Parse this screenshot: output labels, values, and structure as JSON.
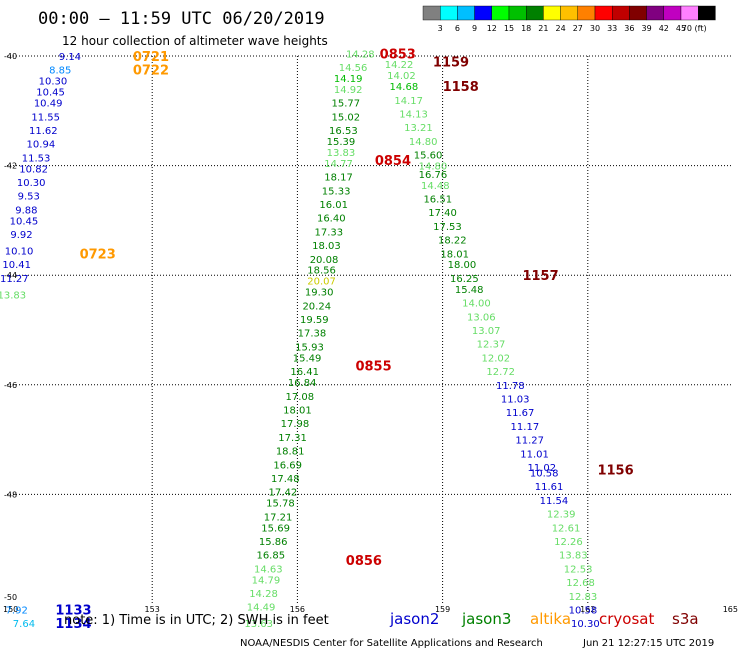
{
  "title": "00:00 – 11:59 UTC 06/20/2019",
  "subtitle": "12 hour collection of altimeter wave heights",
  "legend_scale": {
    "colors": [
      "#808080",
      "#00ffff",
      "#00bfff",
      "#0000ff",
      "#00ff00",
      "#00c000",
      "#008000",
      "#ffff00",
      "#ffc000",
      "#ff8000",
      "#ff0000",
      "#c00000",
      "#800000",
      "#800080",
      "#c000c0",
      "#ff80ff",
      "#000000"
    ],
    "labels": [
      "3",
      "6",
      "9",
      "12",
      "15",
      "18",
      "21",
      "24",
      "27",
      "30",
      "33",
      "36",
      "39",
      "42",
      "45",
      "70 (ft)"
    ]
  },
  "footer": {
    "note": "note: 1) Time is in UTC; 2) SWH is in feet",
    "credit": "NOAA/NESDIS Center for Satellite Applications and Research",
    "timestamp": "Jun 21 12:27:15 UTC 2019"
  },
  "satellites": [
    {
      "name": "jason2",
      "color": "#0000cc"
    },
    {
      "name": "jason3",
      "color": "#008000"
    },
    {
      "name": "altika",
      "color": "#ff9900"
    },
    {
      "name": "cryosat",
      "color": "#cc0000"
    },
    {
      "name": "s3a",
      "color": "#800000"
    }
  ],
  "chart_data": {
    "type": "scatter",
    "xlim": [
      150,
      165
    ],
    "ylim": [
      -50,
      -40
    ],
    "x_ticks": [
      "150",
      "153",
      "156",
      "159",
      "162",
      "165"
    ],
    "y_ticks": [
      "-40",
      "-42",
      "-44",
      "-46",
      "-48",
      "-50"
    ],
    "grid": true,
    "tracks": [
      {
        "satellite": "altika",
        "color": "#ff9900",
        "time_labels": [
          {
            "text": "0721",
            "lon": 152.6,
            "lat": -40.0
          },
          {
            "text": "0722",
            "lon": 152.6,
            "lat": -40.25
          },
          {
            "text": "0723",
            "lon": 151.5,
            "lat": -43.6
          }
        ],
        "points": [
          {
            "lon": 151.3,
            "lat": -40.0,
            "value": "9.14",
            "color": "#0000cc"
          },
          {
            "lon": 151.1,
            "lat": -40.25,
            "value": "8.85",
            "color": "#0088ff"
          },
          {
            "lon": 150.95,
            "lat": -40.45,
            "value": "10.30",
            "color": "#0000cc"
          },
          {
            "lon": 150.9,
            "lat": -40.65,
            "value": "10.45",
            "color": "#0000cc"
          },
          {
            "lon": 150.85,
            "lat": -40.85,
            "value": "10.49",
            "color": "#0000cc"
          },
          {
            "lon": 150.8,
            "lat": -41.1,
            "value": "11.55",
            "color": "#0000cc"
          },
          {
            "lon": 150.75,
            "lat": -41.35,
            "value": "11.62",
            "color": "#0000cc"
          },
          {
            "lon": 150.7,
            "lat": -41.6,
            "value": "10.94",
            "color": "#0000cc"
          },
          {
            "lon": 150.6,
            "lat": -41.85,
            "value": "11.53",
            "color": "#0000cc"
          },
          {
            "lon": 150.55,
            "lat": -42.05,
            "value": "10.82",
            "color": "#0000cc"
          },
          {
            "lon": 150.5,
            "lat": -42.3,
            "value": "10.30",
            "color": "#0000cc"
          },
          {
            "lon": 150.45,
            "lat": -42.55,
            "value": "9.53",
            "color": "#0000cc"
          },
          {
            "lon": 150.4,
            "lat": -42.8,
            "value": "9.88",
            "color": "#0000cc"
          },
          {
            "lon": 150.35,
            "lat": -43.0,
            "value": "10.45",
            "color": "#0000cc"
          },
          {
            "lon": 150.3,
            "lat": -43.25,
            "value": "9.92",
            "color": "#0000cc"
          },
          {
            "lon": 150.25,
            "lat": -43.55,
            "value": "10.10",
            "color": "#0000cc"
          },
          {
            "lon": 150.2,
            "lat": -43.8,
            "value": "10.41",
            "color": "#0000cc"
          },
          {
            "lon": 150.15,
            "lat": -44.05,
            "value": "11.27",
            "color": "#0000cc"
          },
          {
            "lon": 150.1,
            "lat": -44.35,
            "value": "13.83",
            "color": "#66dd66"
          }
        ]
      },
      {
        "satellite": "cryosat",
        "color": "#cc0000",
        "time_labels": [
          {
            "text": "0853",
            "lon": 157.7,
            "lat": -39.95
          },
          {
            "text": "0854",
            "lon": 157.6,
            "lat": -41.9
          },
          {
            "text": "0855",
            "lon": 157.2,
            "lat": -45.65
          },
          {
            "text": "0856",
            "lon": 157.0,
            "lat": -49.2
          }
        ],
        "points": [
          {
            "lon": 157.3,
            "lat": -39.95,
            "value": "14.28",
            "color": "#66dd66"
          },
          {
            "lon": 157.15,
            "lat": -40.2,
            "value": "14.56",
            "color": "#66dd66"
          },
          {
            "lon": 157.05,
            "lat": -40.4,
            "value": "14.19",
            "color": "#00bb00"
          },
          {
            "lon": 157.05,
            "lat": -40.6,
            "value": "14.92",
            "color": "#66dd66"
          },
          {
            "lon": 157.0,
            "lat": -40.85,
            "value": "15.77",
            "color": "#008000"
          },
          {
            "lon": 157.0,
            "lat": -41.1,
            "value": "15.02",
            "color": "#008000"
          },
          {
            "lon": 156.95,
            "lat": -41.35,
            "value": "16.53",
            "color": "#008000"
          },
          {
            "lon": 156.9,
            "lat": -41.55,
            "value": "15.39",
            "color": "#008000"
          },
          {
            "lon": 156.9,
            "lat": -41.75,
            "value": "13.83",
            "color": "#66dd66"
          },
          {
            "lon": 156.85,
            "lat": -41.95,
            "value": "14.77",
            "color": "#66dd66"
          },
          {
            "lon": 156.85,
            "lat": -42.2,
            "value": "18.17",
            "color": "#008000"
          },
          {
            "lon": 156.8,
            "lat": -42.45,
            "value": "15.33",
            "color": "#008000"
          },
          {
            "lon": 156.75,
            "lat": -42.7,
            "value": "16.01",
            "color": "#008000"
          },
          {
            "lon": 156.7,
            "lat": -42.95,
            "value": "16.40",
            "color": "#008000"
          },
          {
            "lon": 156.65,
            "lat": -43.2,
            "value": "17.33",
            "color": "#008000"
          },
          {
            "lon": 156.6,
            "lat": -43.45,
            "value": "18.03",
            "color": "#008000"
          },
          {
            "lon": 156.55,
            "lat": -43.7,
            "value": "20.08",
            "color": "#008000"
          },
          {
            "lon": 156.5,
            "lat": -43.9,
            "value": "18.56",
            "color": "#008000"
          },
          {
            "lon": 156.5,
            "lat": -44.1,
            "value": "20.07",
            "color": "#cccc00"
          },
          {
            "lon": 156.45,
            "lat": -44.3,
            "value": "19.30",
            "color": "#008000"
          },
          {
            "lon": 156.4,
            "lat": -44.55,
            "value": "20.24",
            "color": "#008000"
          },
          {
            "lon": 156.35,
            "lat": -44.8,
            "value": "19.59",
            "color": "#008000"
          },
          {
            "lon": 156.3,
            "lat": -45.05,
            "value": "17.38",
            "color": "#008000"
          },
          {
            "lon": 156.25,
            "lat": -45.3,
            "value": "15.93",
            "color": "#008000"
          },
          {
            "lon": 156.2,
            "lat": -45.5,
            "value": "15.49",
            "color": "#008000"
          },
          {
            "lon": 156.15,
            "lat": -45.75,
            "value": "16.41",
            "color": "#008000"
          },
          {
            "lon": 156.1,
            "lat": -45.95,
            "value": "16.84",
            "color": "#008000"
          },
          {
            "lon": 156.05,
            "lat": -46.2,
            "value": "17.08",
            "color": "#008000"
          },
          {
            "lon": 156.0,
            "lat": -46.45,
            "value": "18.01",
            "color": "#008000"
          },
          {
            "lon": 155.95,
            "lat": -46.7,
            "value": "17.98",
            "color": "#008000"
          },
          {
            "lon": 155.9,
            "lat": -46.95,
            "value": "17.31",
            "color": "#008000"
          },
          {
            "lon": 155.85,
            "lat": -47.2,
            "value": "18.81",
            "color": "#008000"
          },
          {
            "lon": 155.8,
            "lat": -47.45,
            "value": "16.69",
            "color": "#008000"
          },
          {
            "lon": 155.75,
            "lat": -47.7,
            "value": "17.48",
            "color": "#008000"
          },
          {
            "lon": 155.7,
            "lat": -47.95,
            "value": "17.42",
            "color": "#008000"
          },
          {
            "lon": 155.65,
            "lat": -48.15,
            "value": "15.78",
            "color": "#008000"
          },
          {
            "lon": 155.6,
            "lat": -48.4,
            "value": "17.21",
            "color": "#008000"
          },
          {
            "lon": 155.55,
            "lat": -48.6,
            "value": "15.69",
            "color": "#008000"
          },
          {
            "lon": 155.5,
            "lat": -48.85,
            "value": "15.86",
            "color": "#008000"
          },
          {
            "lon": 155.45,
            "lat": -49.1,
            "value": "16.85",
            "color": "#008000"
          },
          {
            "lon": 155.4,
            "lat": -49.35,
            "value": "14.63",
            "color": "#66dd66"
          },
          {
            "lon": 155.35,
            "lat": -49.55,
            "value": "14.79",
            "color": "#66dd66"
          },
          {
            "lon": 155.3,
            "lat": -49.8,
            "value": "14.28",
            "color": "#66dd66"
          },
          {
            "lon": 155.25,
            "lat": -50.05,
            "value": "14.49",
            "color": "#66dd66"
          },
          {
            "lon": 155.2,
            "lat": -50.35,
            "value": "13.63",
            "color": "#66dd66"
          }
        ]
      },
      {
        "satellite": "s3a",
        "color": "#800000",
        "time_labels": [
          {
            "text": "1159",
            "lon": 158.8,
            "lat": -40.1
          },
          {
            "text": "1158",
            "lon": 159.0,
            "lat": -40.55
          },
          {
            "text": "1157",
            "lon": 160.65,
            "lat": -44.0
          },
          {
            "text": "1156",
            "lon": 162.2,
            "lat": -47.55
          }
        ],
        "points": [
          {
            "lon": 158.1,
            "lat": -40.15,
            "value": "14.22",
            "color": "#66dd66"
          },
          {
            "lon": 158.15,
            "lat": -40.35,
            "value": "14.02",
            "color": "#66dd66"
          },
          {
            "lon": 158.2,
            "lat": -40.55,
            "value": "14.68",
            "color": "#00bb00"
          },
          {
            "lon": 158.3,
            "lat": -40.8,
            "value": "14.17",
            "color": "#66dd66"
          },
          {
            "lon": 158.4,
            "lat": -41.05,
            "value": "14.13",
            "color": "#66dd66"
          },
          {
            "lon": 158.5,
            "lat": -41.3,
            "value": "13.21",
            "color": "#66dd66"
          },
          {
            "lon": 158.6,
            "lat": -41.55,
            "value": "14.80",
            "color": "#66dd66"
          },
          {
            "lon": 158.7,
            "lat": -41.8,
            "value": "15.60",
            "color": "#008000"
          },
          {
            "lon": 158.8,
            "lat": -42.0,
            "value": "14.80",
            "color": "#66dd66"
          },
          {
            "lon": 158.8,
            "lat": -42.15,
            "value": "16.76",
            "color": "#008000"
          },
          {
            "lon": 158.85,
            "lat": -42.35,
            "value": "14.48",
            "color": "#66dd66"
          },
          {
            "lon": 158.9,
            "lat": -42.6,
            "value": "16.51",
            "color": "#008000"
          },
          {
            "lon": 159.0,
            "lat": -42.85,
            "value": "17.40",
            "color": "#008000"
          },
          {
            "lon": 159.1,
            "lat": -43.1,
            "value": "17.53",
            "color": "#008000"
          },
          {
            "lon": 159.2,
            "lat": -43.35,
            "value": "18.22",
            "color": "#008000"
          },
          {
            "lon": 159.25,
            "lat": -43.6,
            "value": "18.01",
            "color": "#008000"
          },
          {
            "lon": 159.4,
            "lat": -43.8,
            "value": "18.00",
            "color": "#008000"
          },
          {
            "lon": 159.45,
            "lat": -44.05,
            "value": "16.25",
            "color": "#008000"
          },
          {
            "lon": 159.55,
            "lat": -44.25,
            "value": "15.48",
            "color": "#008000"
          },
          {
            "lon": 159.7,
            "lat": -44.5,
            "value": "14.00",
            "color": "#66dd66"
          },
          {
            "lon": 159.8,
            "lat": -44.75,
            "value": "13.06",
            "color": "#66dd66"
          },
          {
            "lon": 159.9,
            "lat": -45.0,
            "value": "13.07",
            "color": "#66dd66"
          },
          {
            "lon": 160.0,
            "lat": -45.25,
            "value": "12.37",
            "color": "#66dd66"
          },
          {
            "lon": 160.1,
            "lat": -45.5,
            "value": "12.02",
            "color": "#66dd66"
          },
          {
            "lon": 160.2,
            "lat": -45.75,
            "value": "12.72",
            "color": "#66dd66"
          },
          {
            "lon": 160.4,
            "lat": -46.0,
            "value": "11.78",
            "color": "#0000cc"
          },
          {
            "lon": 160.5,
            "lat": -46.25,
            "value": "11.03",
            "color": "#0000cc"
          },
          {
            "lon": 160.6,
            "lat": -46.5,
            "value": "11.67",
            "color": "#0000cc"
          },
          {
            "lon": 160.7,
            "lat": -46.75,
            "value": "11.17",
            "color": "#0000cc"
          },
          {
            "lon": 160.8,
            "lat": -47.0,
            "value": "11.27",
            "color": "#0000cc"
          },
          {
            "lon": 160.9,
            "lat": -47.25,
            "value": "11.01",
            "color": "#0000cc"
          },
          {
            "lon": 161.05,
            "lat": -47.5,
            "value": "11.02",
            "color": "#0000cc"
          },
          {
            "lon": 161.1,
            "lat": -47.6,
            "value": "10.58",
            "color": "#0000cc"
          },
          {
            "lon": 161.2,
            "lat": -47.85,
            "value": "11.61",
            "color": "#0000cc"
          },
          {
            "lon": 161.3,
            "lat": -48.1,
            "value": "11.54",
            "color": "#0000cc"
          },
          {
            "lon": 161.45,
            "lat": -48.35,
            "value": "12.39",
            "color": "#66dd66"
          },
          {
            "lon": 161.55,
            "lat": -48.6,
            "value": "12.61",
            "color": "#66dd66"
          },
          {
            "lon": 161.6,
            "lat": -48.85,
            "value": "12.26",
            "color": "#66dd66"
          },
          {
            "lon": 161.7,
            "lat": -49.1,
            "value": "13.83",
            "color": "#66dd66"
          },
          {
            "lon": 161.8,
            "lat": -49.35,
            "value": "12.53",
            "color": "#66dd66"
          },
          {
            "lon": 161.85,
            "lat": -49.6,
            "value": "12.68",
            "color": "#66dd66"
          },
          {
            "lon": 161.9,
            "lat": -49.85,
            "value": "12.83",
            "color": "#66dd66"
          },
          {
            "lon": 161.9,
            "lat": -50.1,
            "value": "10.58",
            "color": "#0000cc"
          },
          {
            "lon": 161.95,
            "lat": -50.35,
            "value": "10.30",
            "color": "#0000cc"
          }
        ]
      },
      {
        "satellite": "jason2",
        "color": "#0000cc",
        "time_labels": [
          {
            "text": "1133",
            "lon": 151.0,
            "lat": -50.1
          },
          {
            "text": "1134",
            "lon": 151.0,
            "lat": -50.35
          }
        ],
        "points": [
          {
            "lon": 150.2,
            "lat": -50.1,
            "value": "7.92",
            "color": "#0088ff"
          },
          {
            "lon": 150.35,
            "lat": -50.35,
            "value": "7.64",
            "color": "#00bbee"
          }
        ]
      }
    ]
  }
}
